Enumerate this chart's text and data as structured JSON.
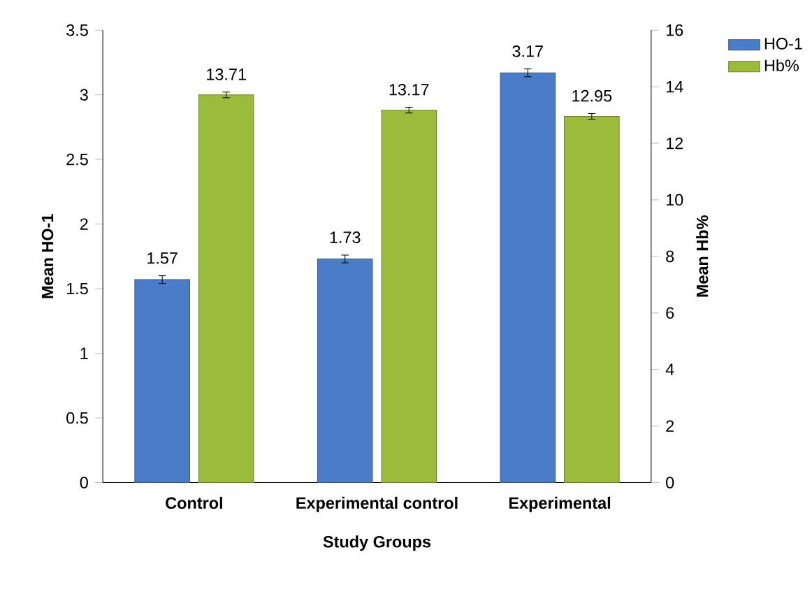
{
  "chart_data": {
    "type": "bar",
    "categories": [
      "Control",
      "Experimental control",
      "Experimental"
    ],
    "series": [
      {
        "name": "HO-1",
        "color": "#4a7cc9",
        "values": [
          1.57,
          1.73,
          3.17
        ],
        "errors": [
          0.03,
          0.03,
          0.03
        ]
      },
      {
        "name": "Hb%",
        "color": "#9bbb3c",
        "values": [
          13.71,
          13.17,
          12.95
        ],
        "errors": [
          0.1,
          0.1,
          0.1
        ],
        "axis": "y2"
      }
    ],
    "xlabel": "Study Groups",
    "ylabel": "Mean HO-1",
    "y2label": "Mean Hb%",
    "ylim": [
      0,
      3.5
    ],
    "yticks": [
      0,
      0.5,
      1,
      1.5,
      2,
      2.5,
      3,
      3.5
    ],
    "y2lim": [
      0,
      16
    ],
    "y2ticks": [
      0,
      2,
      4,
      6,
      8,
      10,
      12,
      14,
      16
    ],
    "data_labels": true,
    "legend": "top right",
    "grid": false
  }
}
